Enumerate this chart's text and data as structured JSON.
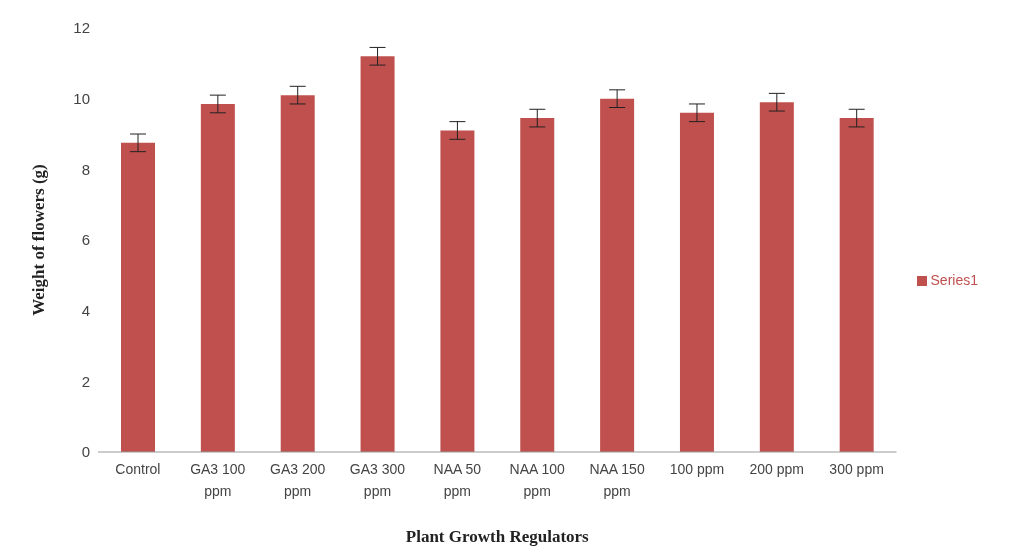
{
  "chart_data": {
    "type": "bar",
    "xlabel": "Plant Growth Regulators",
    "ylabel": "Weight of flowers (g)",
    "categories": [
      "Control",
      "GA3 100 ppm",
      "GA3 200 ppm",
      "GA3 300 ppm",
      "NAA 50 ppm",
      "NAA 100 ppm",
      "NAA 150 ppm",
      "100 ppm",
      "200 ppm",
      "300 ppm"
    ],
    "series": [
      {
        "name": "Series1",
        "color": "#c0504d",
        "values": [
          8.75,
          9.85,
          10.1,
          11.2,
          9.1,
          9.45,
          10.0,
          9.6,
          9.9,
          9.45
        ],
        "errors": [
          0.25,
          0.25,
          0.25,
          0.25,
          0.25,
          0.25,
          0.25,
          0.25,
          0.25,
          0.25
        ]
      }
    ],
    "ylim": [
      0,
      12
    ],
    "yticks": [
      0,
      2,
      4,
      6,
      8,
      10,
      12
    ],
    "grid": false,
    "legend": "right"
  }
}
